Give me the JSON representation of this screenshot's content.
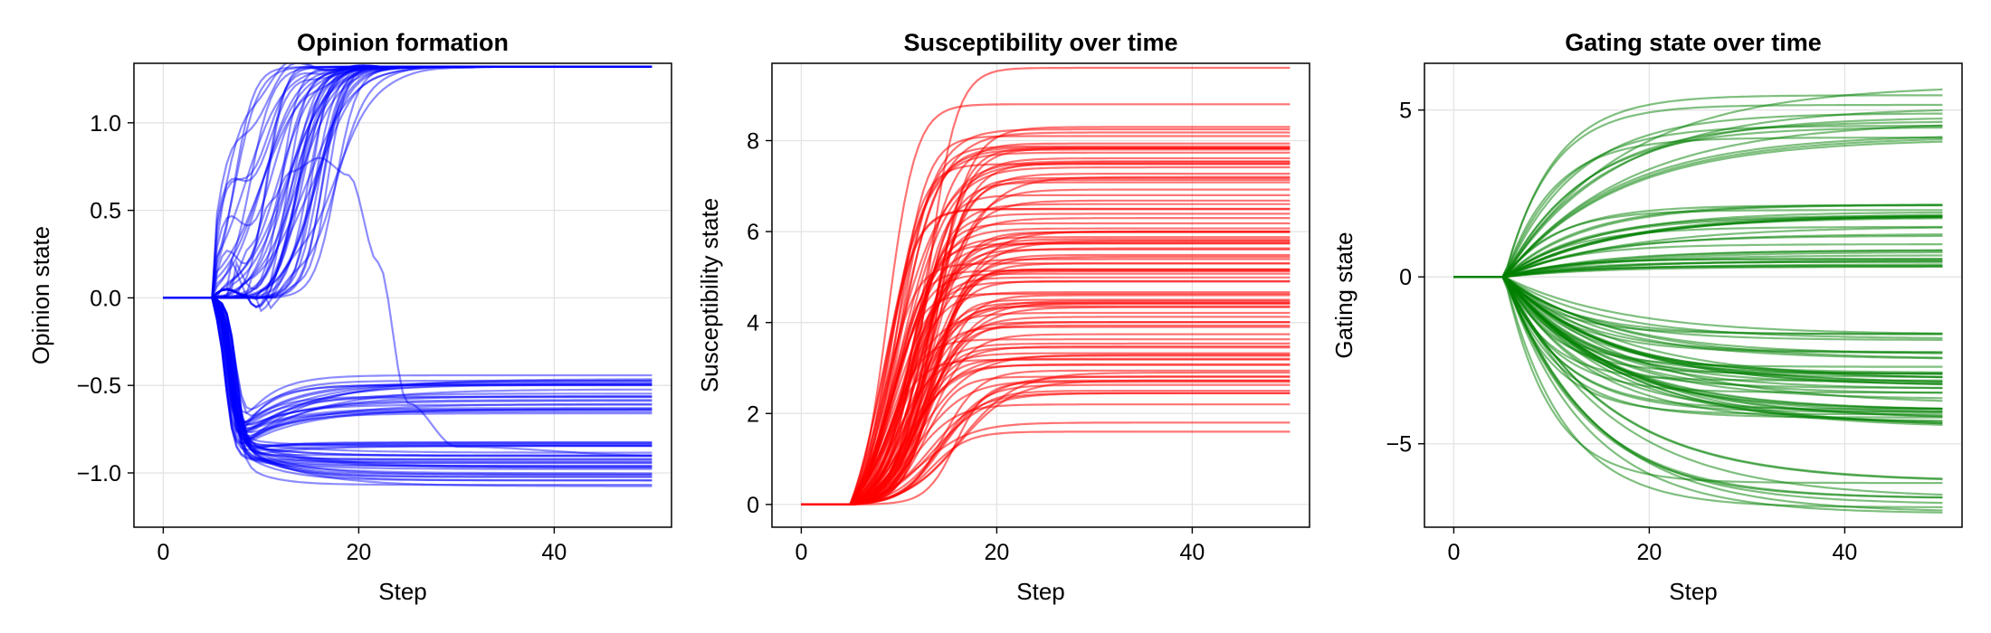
{
  "chart_data": [
    {
      "type": "line",
      "title": "Opinion formation",
      "xlabel": "Step",
      "ylabel": "Opinion state",
      "xlim": [
        -3,
        52
      ],
      "ylim": [
        -1.31,
        1.34
      ],
      "xticks": [
        0,
        20,
        40
      ],
      "xtick_labels": [
        "0",
        "20",
        "40"
      ],
      "yticks": [
        -1.0,
        -0.5,
        0.0,
        0.5,
        1.0
      ],
      "ytick_labels": [
        "−1.0",
        "−0.5",
        "0.0",
        "0.5",
        "1.0"
      ],
      "grid": true,
      "legend": "none",
      "line_color": "#0000ff",
      "line_opacity": 0.45,
      "x_range": [
        0,
        50
      ],
      "initial_value": 0.0,
      "onset_step": 5,
      "series_count": 100,
      "clusters": [
        {
          "center": 1.32,
          "spread": 0.0,
          "count": 45
        },
        {
          "center": -0.55,
          "spread": 0.16,
          "count": 25
        },
        {
          "center": -0.95,
          "spread": 0.18,
          "count": 30
        }
      ],
      "notable_series": [
        {
          "x": [
            0,
            5,
            7,
            9,
            11,
            13,
            16,
            19,
            22,
            25,
            30,
            50
          ],
          "y": [
            0,
            0,
            0.1,
            0.3,
            0.55,
            0.72,
            0.8,
            0.7,
            0.2,
            -0.6,
            -0.85,
            -0.9
          ]
        }
      ]
    },
    {
      "type": "line",
      "title": "Susceptibility over time",
      "xlabel": "Step",
      "ylabel": "Susceptibility state",
      "xlim": [
        -3,
        52
      ],
      "ylim": [
        -0.5,
        9.7
      ],
      "xticks": [
        0,
        20,
        40
      ],
      "xtick_labels": [
        "0",
        "20",
        "40"
      ],
      "yticks": [
        0,
        2,
        4,
        6,
        8
      ],
      "ytick_labels": [
        "0",
        "2",
        "4",
        "6",
        "8"
      ],
      "grid": true,
      "legend": "none",
      "line_color": "#ff0000",
      "line_opacity": 0.55,
      "x_range": [
        0,
        50
      ],
      "initial_value": 0.0,
      "onset_step": 5,
      "series_count": 100,
      "final_value_range": [
        1.6,
        9.6
      ],
      "notable_final_values": [
        9.6,
        8.8,
        8.3,
        8.1,
        7.2,
        6.5,
        6.0,
        5.3,
        4.9,
        4.5,
        3.9,
        3.2,
        2.5,
        2.2,
        1.8,
        1.6
      ]
    },
    {
      "type": "line",
      "title": "Gating state over time",
      "xlabel": "Step",
      "ylabel": "Gating state",
      "xlim": [
        -3,
        52
      ],
      "ylim": [
        -7.5,
        6.4
      ],
      "xticks": [
        0,
        20,
        40
      ],
      "xtick_labels": [
        "0",
        "20",
        "40"
      ],
      "yticks": [
        -5,
        0,
        5
      ],
      "ytick_labels": [
        "−5",
        "0",
        "5"
      ],
      "grid": true,
      "legend": "none",
      "line_color": "#008000",
      "line_opacity": 0.5,
      "x_range": [
        0,
        50
      ],
      "initial_value": 0.0,
      "onset_step": 5,
      "series_count": 100,
      "final_value_range": [
        -7.2,
        6.3
      ],
      "clusters": [
        {
          "center": 5.0,
          "spread": 0.9,
          "count": 14
        },
        {
          "center": 1.3,
          "spread": 1.0,
          "count": 30
        },
        {
          "center": -3.2,
          "spread": 1.5,
          "count": 46
        },
        {
          "center": -6.6,
          "spread": 0.5,
          "count": 10
        }
      ]
    }
  ]
}
